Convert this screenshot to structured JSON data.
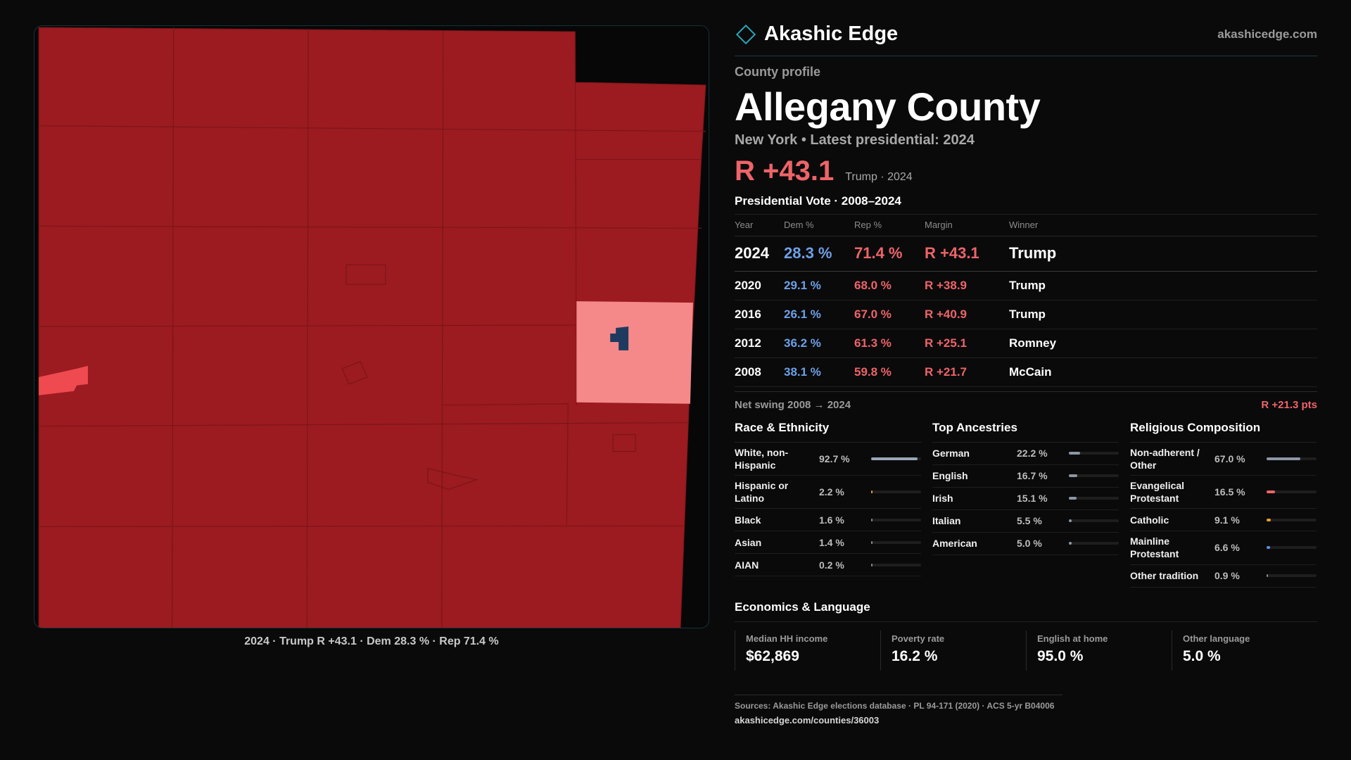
{
  "brand": {
    "name": "Akashic Edge",
    "site": "akashicedge.com",
    "accent": "#2aa6b8"
  },
  "profile": {
    "eyebrow": "County profile",
    "county": "Allegany County",
    "subtitle": "New York  • Latest presidential: 2024",
    "margin_value": "R +43.1",
    "margin_note": "Trump · 2024"
  },
  "map": {
    "caption": "2024 · Trump  R +43.1 · Dem 28.3 % · Rep 71.4 %",
    "colors": {
      "strong_rep": "#9b1b20",
      "mid_rep": "#ef4a4f",
      "lean_rep": "#f5898a",
      "dem": "#1f3a5f"
    }
  },
  "presidential": {
    "title": "Presidential Vote · 2008–2024",
    "headers": [
      "Year",
      "Dem %",
      "Rep %",
      "Margin",
      "Winner"
    ],
    "rows": [
      {
        "year": "2024",
        "dem": "28.3 %",
        "rep": "71.4 %",
        "margin": "R +43.1",
        "winner": "Trump"
      },
      {
        "year": "2020",
        "dem": "29.1 %",
        "rep": "68.0 %",
        "margin": "R +38.9",
        "winner": "Trump"
      },
      {
        "year": "2016",
        "dem": "26.1 %",
        "rep": "67.0 %",
        "margin": "R +40.9",
        "winner": "Trump"
      },
      {
        "year": "2012",
        "dem": "36.2 %",
        "rep": "61.3 %",
        "margin": "R +25.1",
        "winner": "Romney"
      },
      {
        "year": "2008",
        "dem": "38.1 %",
        "rep": "59.8 %",
        "margin": "R +21.7",
        "winner": "McCain"
      }
    ],
    "swing_label": "Net swing 2008 → 2024",
    "swing_value": "R +21.3 pts"
  },
  "race": {
    "title": "Race & Ethnicity",
    "items": [
      {
        "label": "White, non-Hispanic",
        "value": "92.7 %",
        "pct": 92.7,
        "color": "#9aa6b6"
      },
      {
        "label": "Hispanic or Latino",
        "value": "2.2 %",
        "pct": 2.2,
        "color": "#e0a030"
      },
      {
        "label": "Black",
        "value": "1.6 %",
        "pct": 1.6,
        "color": "#8a8a8a"
      },
      {
        "label": "Asian",
        "value": "1.4 %",
        "pct": 1.4,
        "color": "#8a8a8a"
      },
      {
        "label": "AIAN",
        "value": "0.2 %",
        "pct": 0.2,
        "color": "#8a8a8a"
      }
    ]
  },
  "ancestry": {
    "title": "Top Ancestries",
    "items": [
      {
        "label": "German",
        "value": "22.2 %",
        "pct": 22.2,
        "color": "#8d96a3"
      },
      {
        "label": "English",
        "value": "16.7 %",
        "pct": 16.7,
        "color": "#8d96a3"
      },
      {
        "label": "Irish",
        "value": "15.1 %",
        "pct": 15.1,
        "color": "#8d96a3"
      },
      {
        "label": "Italian",
        "value": "5.5 %",
        "pct": 5.5,
        "color": "#8d96a3"
      },
      {
        "label": "American",
        "value": "5.0 %",
        "pct": 5.0,
        "color": "#8d96a3"
      }
    ]
  },
  "religion": {
    "title": "Religious Composition",
    "items": [
      {
        "label": "Non-adherent / Other",
        "value": "67.0 %",
        "pct": 67.0,
        "color": "#8d96a3"
      },
      {
        "label": "Evangelical Protestant",
        "value": "16.5 %",
        "pct": 16.5,
        "color": "#ee6468"
      },
      {
        "label": "Catholic",
        "value": "9.1 %",
        "pct": 9.1,
        "color": "#e0a030"
      },
      {
        "label": "Mainline Protestant",
        "value": "6.6 %",
        "pct": 6.6,
        "color": "#5b8fd8"
      },
      {
        "label": "Other tradition",
        "value": "0.9 %",
        "pct": 0.9,
        "color": "#8a8a8a"
      }
    ]
  },
  "economics": {
    "title": "Economics & Language",
    "cells": [
      {
        "label": "Median HH income",
        "value": "$62,869"
      },
      {
        "label": "Poverty rate",
        "value": "16.2 %"
      },
      {
        "label": "English at home",
        "value": "95.0 %"
      },
      {
        "label": "Other language",
        "value": "5.0 %"
      }
    ]
  },
  "sources": {
    "line": "Sources: Akashic Edge elections database · PL 94-171 (2020) · ACS 5-yr B04006",
    "url": "akashicedge.com/counties/36003"
  }
}
